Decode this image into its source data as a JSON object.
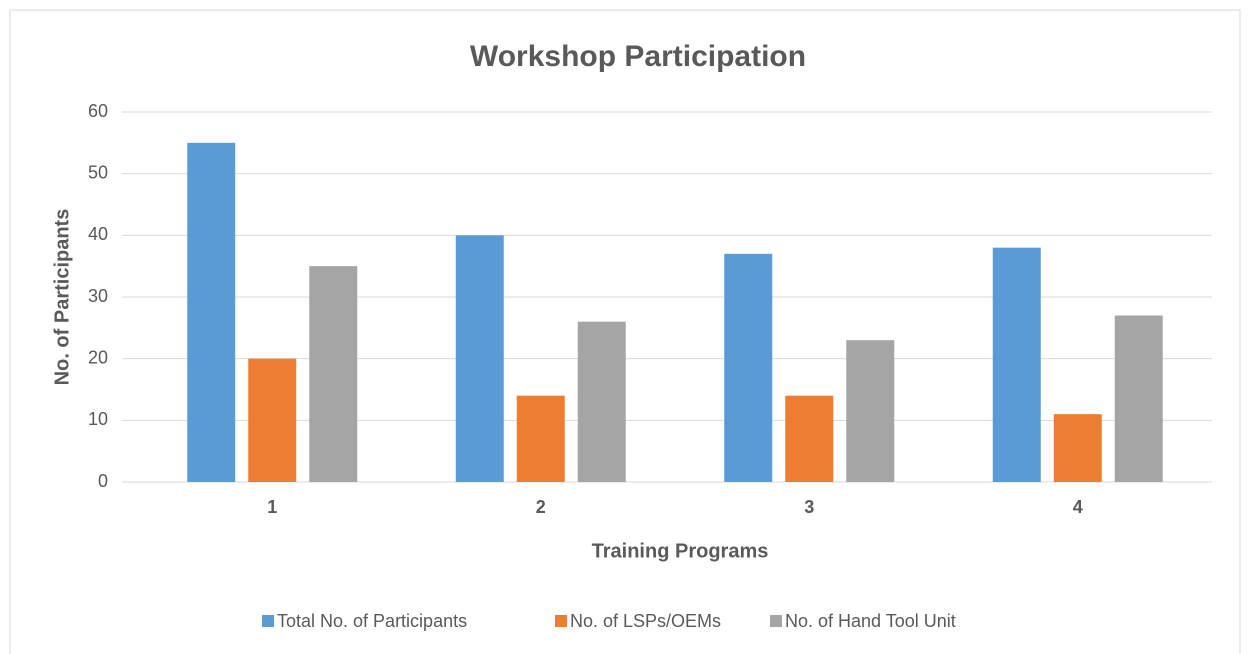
{
  "chart_data": {
    "type": "bar",
    "title": "Workshop Participation",
    "x_label": "Training Programs",
    "y_label": "No. of Participants",
    "categories": [
      "1",
      "2",
      "3",
      "4"
    ],
    "series": [
      {
        "name": "Total No. of Participants",
        "color": "#5b9bd5",
        "values": [
          55,
          40,
          37,
          38
        ]
      },
      {
        "name": "No. of LSPs/OEMs",
        "color": "#ed7d31",
        "values": [
          20,
          14,
          14,
          11
        ]
      },
      {
        "name": "No. of Hand Tool Unit",
        "color": "#a5a5a5",
        "values": [
          35,
          26,
          23,
          27
        ]
      }
    ],
    "ylim": [
      0,
      60
    ],
    "yticks": [
      0,
      10,
      20,
      30,
      40,
      50,
      60
    ],
    "grid": true,
    "legend": "bottom"
  }
}
